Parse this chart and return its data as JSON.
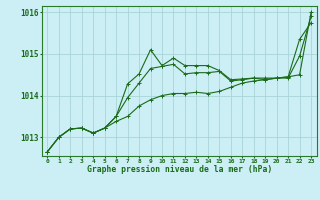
{
  "title": "Graphe pression niveau de la mer (hPa)",
  "background_color": "#cceef5",
  "grid_color": "#aad4d8",
  "line_color": "#1a6b1a",
  "xlim": [
    -0.5,
    23.5
  ],
  "ylim": [
    1012.55,
    1016.15
  ],
  "yticks": [
    1013,
    1014,
    1015,
    1016
  ],
  "xticks": [
    0,
    1,
    2,
    3,
    4,
    5,
    6,
    7,
    8,
    9,
    10,
    11,
    12,
    13,
    14,
    15,
    16,
    17,
    18,
    19,
    20,
    21,
    22,
    23
  ],
  "series": [
    [
      1012.65,
      1013.0,
      1013.2,
      1013.22,
      1013.1,
      1013.22,
      1013.38,
      1013.5,
      1013.75,
      1013.9,
      1014.0,
      1014.05,
      1014.05,
      1014.08,
      1014.05,
      1014.1,
      1014.2,
      1014.3,
      1014.35,
      1014.38,
      1014.42,
      1014.45,
      1014.5,
      1016.0
    ],
    [
      1012.65,
      1013.0,
      1013.2,
      1013.22,
      1013.1,
      1013.22,
      1013.5,
      1013.95,
      1014.3,
      1014.65,
      1014.7,
      1014.75,
      1014.52,
      1014.55,
      1014.55,
      1014.58,
      1014.35,
      1014.38,
      1014.42,
      1014.42,
      1014.42,
      1014.45,
      1015.35,
      1015.75
    ],
    [
      1012.65,
      1013.0,
      1013.2,
      1013.22,
      1013.1,
      1013.22,
      1013.5,
      1014.28,
      1014.52,
      1015.1,
      1014.72,
      1014.9,
      1014.72,
      1014.72,
      1014.72,
      1014.6,
      1014.38,
      1014.4,
      1014.42,
      1014.38,
      1014.42,
      1014.42,
      1014.95,
      1015.9
    ]
  ]
}
